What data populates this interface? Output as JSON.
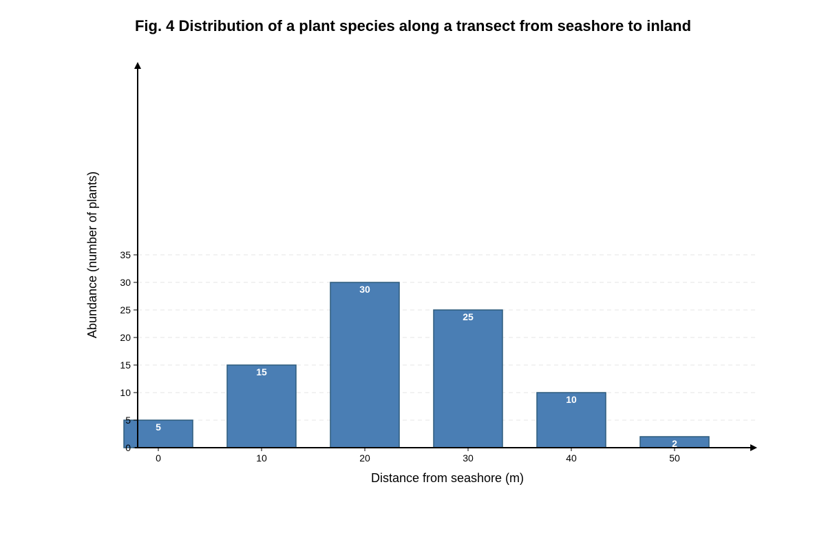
{
  "chart_data": {
    "type": "bar",
    "title": "Fig. 4 Distribution of a plant species along a transect from seashore to inland",
    "xlabel": "Distance from seashore (m)",
    "ylabel": "Abundance (number of plants)",
    "categories": [
      "0",
      "10",
      "20",
      "30",
      "40",
      "50"
    ],
    "values": [
      5,
      15,
      30,
      25,
      10,
      2
    ],
    "data_labels": [
      "5",
      "15",
      "30",
      "25",
      "10",
      "2"
    ],
    "y_ticks": [
      0,
      5,
      10,
      15,
      20,
      25,
      30,
      35
    ],
    "ylim": [
      0,
      70
    ],
    "grid": true,
    "bar_color": "#4a7eb4",
    "bar_border_color": "#2d5b7d",
    "grid_color": "#e6e6e6",
    "axis_color": "#000000"
  }
}
